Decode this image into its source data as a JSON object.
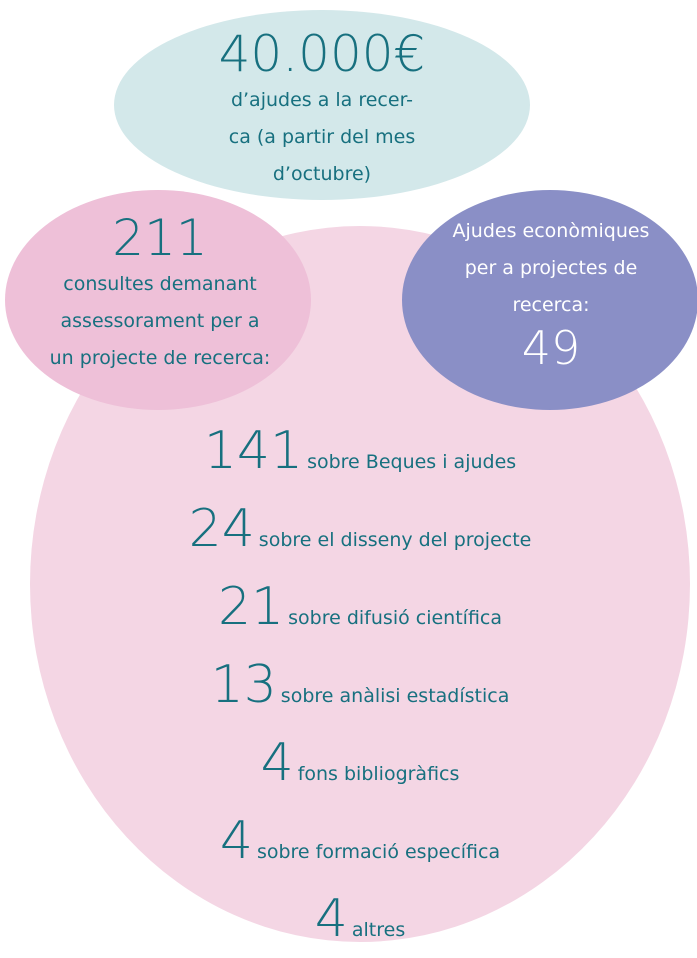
{
  "top": {
    "value": "40.000€",
    "lines": [
      "d’ajudes a la recer-",
      "ca (a partir del mes",
      "d’octubre)"
    ]
  },
  "consultations": {
    "value": 211,
    "lines": [
      "consultes demanant",
      "assessorament per a",
      "un projecte de recerca:"
    ]
  },
  "grants": {
    "lines": [
      "Ajudes econòmiques",
      "per a projectes de",
      "recerca:"
    ],
    "value": 49
  },
  "items": [
    {
      "number": 141,
      "label": "sobre Beques i ajudes"
    },
    {
      "number": 24,
      "label": "sobre el disseny del projecte"
    },
    {
      "number": 21,
      "label": "sobre difusió científica"
    },
    {
      "number": 13,
      "label": "sobre anàlisi estadística"
    },
    {
      "number": 4,
      "label": "fons bibliogràfics"
    },
    {
      "number": 4,
      "label": "sobre formació específica"
    },
    {
      "number": 4,
      "label": "altres"
    }
  ]
}
